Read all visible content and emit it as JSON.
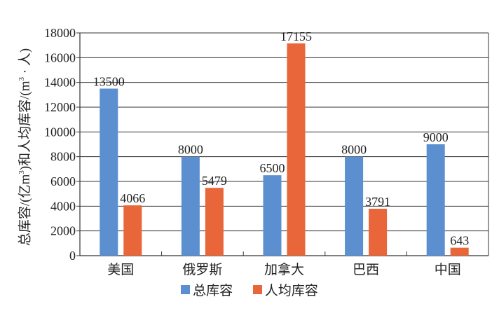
{
  "chart_data": {
    "type": "bar",
    "categories": [
      "美国",
      "俄罗斯",
      "加拿大",
      "巴西",
      "中国"
    ],
    "series": [
      {
        "name": "总库容",
        "values": [
          13500,
          8000,
          6500,
          8000,
          9000
        ],
        "color": "#5b8fd0"
      },
      {
        "name": "人均库容",
        "values": [
          4066,
          5479,
          17155,
          3791,
          643
        ],
        "color": "#e8663a"
      }
    ],
    "ylabel_parts": [
      "总库容/(亿m",
      "3",
      ")和人均库容/(m",
      "3",
      " · 人)"
    ],
    "ylim": [
      0,
      18000
    ],
    "yticks": [
      0,
      2000,
      4000,
      6000,
      8000,
      10000,
      12000,
      14000,
      16000,
      18000
    ],
    "grid": true,
    "legend": "bottom"
  }
}
